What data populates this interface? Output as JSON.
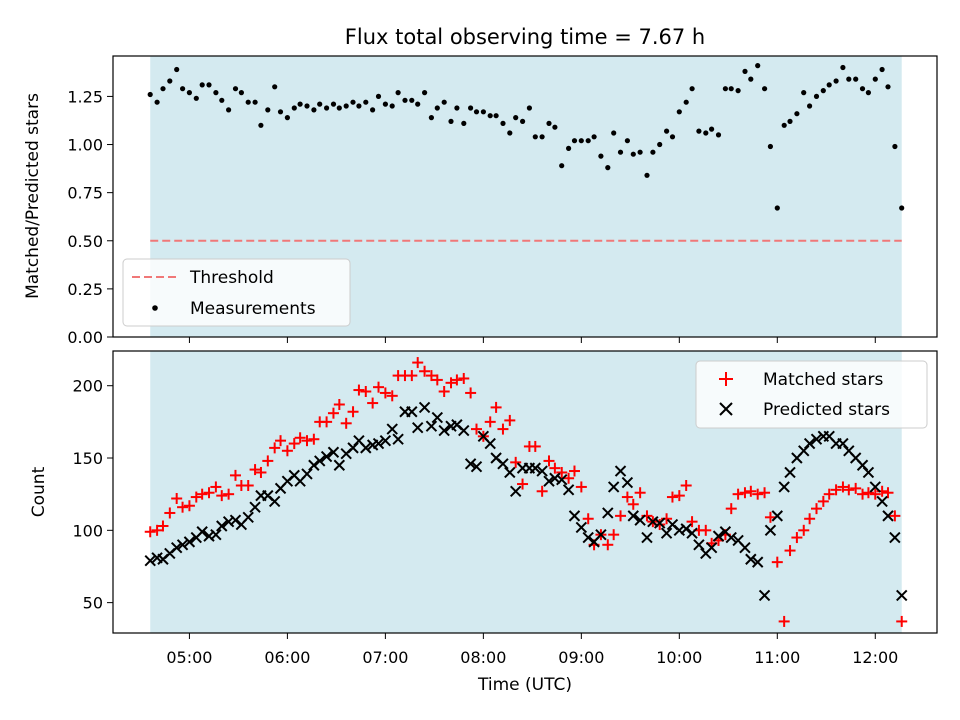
{
  "chart_data": [
    {
      "type": "scatter",
      "title": "Flux total observing time = 7.67 h",
      "xlabel": "",
      "ylabel": "Matched/Predicted stars",
      "xlim_hours": [
        4.22,
        12.63
      ],
      "ylim": [
        0.0,
        1.46
      ],
      "yticks": [
        0.0,
        0.25,
        0.5,
        0.75,
        1.0,
        1.25
      ],
      "ytick_labels": [
        "0.00",
        "0.25",
        "0.50",
        "0.75",
        "1.00",
        "1.25"
      ],
      "shaded_interval_hours": [
        4.6,
        12.27
      ],
      "shade_color": "#d4eaf0",
      "threshold": {
        "value": 0.5,
        "label": "Threshold",
        "color": "#f07878"
      },
      "legend": {
        "position": "lower-left",
        "entries": [
          "Threshold",
          "Measurements"
        ]
      },
      "series": [
        {
          "name": "Measurements",
          "color": "#000000",
          "marker": "dot",
          "x": [
            4.6,
            4.67,
            4.73,
            4.8,
            4.87,
            4.93,
            5.0,
            5.07,
            5.13,
            5.2,
            5.27,
            5.33,
            5.4,
            5.47,
            5.53,
            5.6,
            5.67,
            5.73,
            5.8,
            5.87,
            5.93,
            6.0,
            6.07,
            6.13,
            6.2,
            6.27,
            6.33,
            6.4,
            6.47,
            6.53,
            6.6,
            6.67,
            6.73,
            6.8,
            6.87,
            6.93,
            7.0,
            7.07,
            7.13,
            7.2,
            7.27,
            7.33,
            7.4,
            7.47,
            7.53,
            7.6,
            7.67,
            7.73,
            7.8,
            7.87,
            7.93,
            8.0,
            8.07,
            8.13,
            8.2,
            8.27,
            8.33,
            8.4,
            8.47,
            8.53,
            8.6,
            8.67,
            8.73,
            8.8,
            8.87,
            8.93,
            9.0,
            9.07,
            9.13,
            9.2,
            9.27,
            9.33,
            9.4,
            9.47,
            9.53,
            9.6,
            9.67,
            9.73,
            9.8,
            9.87,
            9.93,
            10.0,
            10.07,
            10.13,
            10.2,
            10.27,
            10.33,
            10.4,
            10.47,
            10.53,
            10.6,
            10.67,
            10.73,
            10.8,
            10.87,
            10.93,
            11.0,
            11.07,
            11.13,
            11.2,
            11.27,
            11.33,
            11.4,
            11.47,
            11.53,
            11.6,
            11.67,
            11.73,
            11.8,
            11.87,
            11.93,
            12.0,
            12.07,
            12.13,
            12.2,
            12.27
          ],
          "values": [
            1.26,
            1.22,
            1.29,
            1.33,
            1.39,
            1.29,
            1.27,
            1.24,
            1.31,
            1.31,
            1.27,
            1.23,
            1.18,
            1.29,
            1.27,
            1.22,
            1.22,
            1.1,
            1.18,
            1.3,
            1.17,
            1.14,
            1.19,
            1.21,
            1.2,
            1.18,
            1.21,
            1.19,
            1.21,
            1.19,
            1.2,
            1.22,
            1.2,
            1.22,
            1.18,
            1.25,
            1.21,
            1.2,
            1.27,
            1.23,
            1.23,
            1.21,
            1.27,
            1.14,
            1.19,
            1.22,
            1.12,
            1.19,
            1.11,
            1.19,
            1.17,
            1.17,
            1.15,
            1.15,
            1.11,
            1.06,
            1.14,
            1.12,
            1.19,
            1.04,
            1.04,
            1.11,
            1.09,
            0.89,
            0.98,
            1.02,
            1.02,
            1.02,
            1.04,
            0.94,
            0.88,
            1.06,
            0.96,
            1.02,
            0.95,
            0.96,
            0.84,
            0.96,
            1.0,
            1.07,
            1.04,
            1.17,
            1.22,
            1.29,
            1.07,
            1.06,
            1.08,
            1.05,
            1.29,
            1.29,
            1.28,
            1.38,
            1.34,
            1.41,
            1.29,
            0.99,
            0.67,
            1.1,
            1.12,
            1.16,
            1.27,
            1.2,
            1.25,
            1.28,
            1.31,
            1.33,
            1.4,
            1.34,
            1.34,
            1.29,
            1.27,
            1.34,
            1.39,
            1.3,
            0.99,
            0.67
          ]
        }
      ]
    },
    {
      "type": "scatter",
      "title": "",
      "xlabel": "Time (UTC)",
      "ylabel": "Count",
      "xlim_hours": [
        4.22,
        12.63
      ],
      "ylim": [
        29,
        224
      ],
      "yticks": [
        50,
        100,
        150,
        200
      ],
      "ytick_labels": [
        "50",
        "100",
        "150",
        "200"
      ],
      "xticks_hours": [
        5,
        6,
        7,
        8,
        9,
        10,
        11,
        12
      ],
      "xtick_labels": [
        "05:00",
        "06:00",
        "07:00",
        "08:00",
        "09:00",
        "10:00",
        "11:00",
        "12:00"
      ],
      "shaded_interval_hours": [
        4.6,
        12.27
      ],
      "shade_color": "#d4eaf0",
      "legend": {
        "position": "upper-right",
        "entries": [
          "Matched stars",
          "Predicted stars"
        ]
      },
      "series": [
        {
          "name": "Matched stars",
          "color": "#ff0000",
          "marker": "plus",
          "x": [
            4.6,
            4.67,
            4.73,
            4.8,
            4.87,
            4.93,
            5.0,
            5.07,
            5.13,
            5.2,
            5.27,
            5.33,
            5.4,
            5.47,
            5.53,
            5.6,
            5.67,
            5.73,
            5.8,
            5.87,
            5.93,
            6.0,
            6.07,
            6.13,
            6.2,
            6.27,
            6.33,
            6.4,
            6.47,
            6.53,
            6.6,
            6.67,
            6.73,
            6.8,
            6.87,
            6.93,
            7.0,
            7.07,
            7.13,
            7.2,
            7.27,
            7.33,
            7.4,
            7.47,
            7.53,
            7.6,
            7.67,
            7.73,
            7.8,
            7.87,
            7.93,
            8.0,
            8.07,
            8.13,
            8.2,
            8.27,
            8.33,
            8.4,
            8.47,
            8.53,
            8.6,
            8.67,
            8.73,
            8.8,
            8.87,
            8.93,
            9.0,
            9.07,
            9.13,
            9.2,
            9.27,
            9.33,
            9.4,
            9.47,
            9.53,
            9.6,
            9.67,
            9.73,
            9.8,
            9.87,
            9.93,
            10.0,
            10.07,
            10.13,
            10.2,
            10.27,
            10.33,
            10.4,
            10.47,
            10.53,
            10.6,
            10.67,
            10.73,
            10.8,
            10.87,
            10.93,
            11.0,
            11.07,
            11.13,
            11.2,
            11.27,
            11.33,
            11.4,
            11.47,
            11.53,
            11.6,
            11.67,
            11.73,
            11.8,
            11.87,
            11.93,
            12.0,
            12.07,
            12.13,
            12.2,
            12.27
          ],
          "values": [
            99,
            100,
            103,
            112,
            122,
            116,
            117,
            123,
            125,
            126,
            130,
            124,
            125,
            138,
            131,
            131,
            142,
            140,
            148,
            157,
            162,
            155,
            160,
            164,
            162,
            163,
            175,
            175,
            181,
            187,
            174,
            182,
            197,
            196,
            188,
            199,
            195,
            193,
            207,
            207,
            207,
            216,
            210,
            207,
            204,
            196,
            202,
            204,
            205,
            195,
            170,
            165,
            175,
            185,
            170,
            176,
            147,
            132,
            158,
            158,
            127,
            148,
            143,
            140,
            136,
            141,
            130,
            108,
            90,
            97,
            90,
            97,
            110,
            123,
            118,
            126,
            110,
            106,
            104,
            108,
            123,
            124,
            131,
            106,
            100,
            100,
            91,
            93,
            97,
            115,
            125,
            126,
            127,
            125,
            126,
            109,
            78,
            37,
            86,
            95,
            100,
            108,
            115,
            120,
            125,
            128,
            130,
            128,
            129,
            125,
            126,
            125,
            127,
            126,
            110,
            37
          ]
        },
        {
          "name": "Predicted stars",
          "color": "#000000",
          "marker": "x",
          "x": [
            4.6,
            4.67,
            4.73,
            4.8,
            4.87,
            4.93,
            5.0,
            5.07,
            5.13,
            5.2,
            5.27,
            5.33,
            5.4,
            5.47,
            5.53,
            5.6,
            5.67,
            5.73,
            5.8,
            5.87,
            5.93,
            6.0,
            6.07,
            6.13,
            6.2,
            6.27,
            6.33,
            6.4,
            6.47,
            6.53,
            6.6,
            6.67,
            6.73,
            6.8,
            6.87,
            6.93,
            7.0,
            7.07,
            7.13,
            7.2,
            7.27,
            7.33,
            7.4,
            7.47,
            7.53,
            7.6,
            7.67,
            7.73,
            7.8,
            7.87,
            7.93,
            8.0,
            8.07,
            8.13,
            8.2,
            8.27,
            8.33,
            8.4,
            8.47,
            8.53,
            8.6,
            8.67,
            8.73,
            8.8,
            8.87,
            8.93,
            9.0,
            9.07,
            9.13,
            9.2,
            9.27,
            9.33,
            9.4,
            9.47,
            9.53,
            9.6,
            9.67,
            9.73,
            9.8,
            9.87,
            9.93,
            10.0,
            10.07,
            10.13,
            10.2,
            10.27,
            10.33,
            10.4,
            10.47,
            10.53,
            10.6,
            10.67,
            10.73,
            10.8,
            10.87,
            10.93,
            11.0,
            11.07,
            11.13,
            11.2,
            11.27,
            11.33,
            11.4,
            11.47,
            11.53,
            11.6,
            11.67,
            11.73,
            11.8,
            11.87,
            11.93,
            12.0,
            12.07,
            12.13,
            12.2,
            12.27
          ],
          "values": [
            79,
            81,
            80,
            84,
            88,
            90,
            92,
            95,
            99,
            96,
            97,
            103,
            106,
            107,
            104,
            109,
            116,
            124,
            124,
            120,
            129,
            134,
            138,
            134,
            139,
            145,
            148,
            151,
            154,
            145,
            153,
            157,
            162,
            157,
            159,
            160,
            162,
            170,
            163,
            182,
            182,
            171,
            185,
            172,
            178,
            169,
            172,
            173,
            169,
            146,
            144,
            165,
            160,
            150,
            146,
            140,
            127,
            143,
            143,
            143,
            141,
            134,
            136,
            135,
            128,
            110,
            102,
            95,
            92,
            97,
            112,
            130,
            141,
            133,
            110,
            107,
            95,
            106,
            105,
            98,
            104,
            100,
            101,
            98,
            90,
            84,
            88,
            96,
            99,
            95,
            93,
            88,
            80,
            78,
            55,
            100,
            110,
            130,
            140,
            150,
            155,
            160,
            163,
            165,
            165,
            160,
            160,
            155,
            150,
            145,
            140,
            130,
            120,
            110,
            95,
            55
          ]
        }
      ]
    }
  ]
}
